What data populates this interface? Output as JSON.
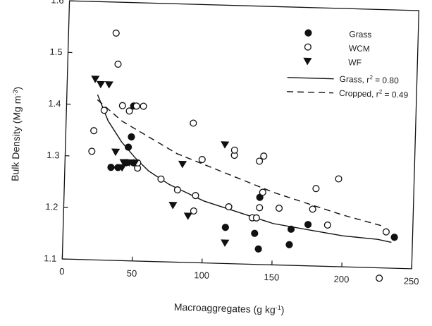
{
  "chart_data": {
    "type": "scatter",
    "xlabel": "Macroaggregates (g kg⁻¹)",
    "ylabel": "Bulk Density (Mg m⁻³)",
    "xlim": [
      0,
      250
    ],
    "ylim": [
      1.1,
      1.6
    ],
    "x_ticks": [
      "0",
      "50",
      "100",
      "150",
      "200",
      "250"
    ],
    "y_ticks": [
      "1.1",
      "1.2",
      "1.3",
      "1.4",
      "1.5",
      "1.6"
    ],
    "grid": false,
    "legend_position": "top-right",
    "series": [
      {
        "name": "Grass",
        "marker": "filled-circle",
        "points": [
          {
            "x": 33,
            "y": 1.28
          },
          {
            "x": 38,
            "y": 1.28
          },
          {
            "x": 44,
            "y": 1.29
          },
          {
            "x": 45,
            "y": 1.32
          },
          {
            "x": 47,
            "y": 1.34
          },
          {
            "x": 48,
            "y": 1.4
          },
          {
            "x": 49,
            "y": 1.29
          },
          {
            "x": 116,
            "y": 1.17
          },
          {
            "x": 137,
            "y": 1.16
          },
          {
            "x": 140,
            "y": 1.13
          },
          {
            "x": 140,
            "y": 1.23
          },
          {
            "x": 162,
            "y": 1.14
          },
          {
            "x": 163,
            "y": 1.17
          },
          {
            "x": 175,
            "y": 1.18
          },
          {
            "x": 237,
            "y": 1.16
          }
        ]
      },
      {
        "name": "WCM",
        "marker": "open-circle",
        "points": [
          {
            "x": 19,
            "y": 1.31
          },
          {
            "x": 20,
            "y": 1.35
          },
          {
            "x": 27,
            "y": 1.39
          },
          {
            "x": 34,
            "y": 1.54
          },
          {
            "x": 36,
            "y": 1.48
          },
          {
            "x": 40,
            "y": 1.4
          },
          {
            "x": 45,
            "y": 1.39
          },
          {
            "x": 50,
            "y": 1.4
          },
          {
            "x": 52,
            "y": 1.28
          },
          {
            "x": 52,
            "y": 1.29
          },
          {
            "x": 55,
            "y": 1.4
          },
          {
            "x": 69,
            "y": 1.26
          },
          {
            "x": 81,
            "y": 1.24
          },
          {
            "x": 91,
            "y": 1.37
          },
          {
            "x": 93,
            "y": 1.2
          },
          {
            "x": 94,
            "y": 1.23
          },
          {
            "x": 98,
            "y": 1.3
          },
          {
            "x": 118,
            "y": 1.21
          },
          {
            "x": 121,
            "y": 1.31
          },
          {
            "x": 121,
            "y": 1.32
          },
          {
            "x": 135,
            "y": 1.19
          },
          {
            "x": 138,
            "y": 1.19
          },
          {
            "x": 139,
            "y": 1.3
          },
          {
            "x": 140,
            "y": 1.21
          },
          {
            "x": 142,
            "y": 1.31
          },
          {
            "x": 142,
            "y": 1.24
          },
          {
            "x": 154,
            "y": 1.21
          },
          {
            "x": 178,
            "y": 1.21
          },
          {
            "x": 180,
            "y": 1.25
          },
          {
            "x": 189,
            "y": 1.18
          },
          {
            "x": 196,
            "y": 1.27
          },
          {
            "x": 227,
            "y": 1.08
          },
          {
            "x": 231,
            "y": 1.17
          }
        ]
      },
      {
        "name": "WF",
        "marker": "filled-triangle-down",
        "points": [
          {
            "x": 20,
            "y": 1.45
          },
          {
            "x": 24,
            "y": 1.44
          },
          {
            "x": 30,
            "y": 1.44
          },
          {
            "x": 36,
            "y": 1.31
          },
          {
            "x": 41,
            "y": 1.28
          },
          {
            "x": 42,
            "y": 1.29
          },
          {
            "x": 44,
            "y": 1.29
          },
          {
            "x": 46,
            "y": 1.29
          },
          {
            "x": 50,
            "y": 1.29
          },
          {
            "x": 78,
            "y": 1.21
          },
          {
            "x": 84,
            "y": 1.29
          },
          {
            "x": 89,
            "y": 1.19
          },
          {
            "x": 114,
            "y": 1.33
          },
          {
            "x": 116,
            "y": 1.14
          }
        ]
      }
    ],
    "fits": [
      {
        "name": "Grass",
        "style": "solid",
        "legend_label_prefix": "Grass, r",
        "legend_label_suffix": " = 0.80",
        "points": [
          {
            "x": 22,
            "y": 1.42
          },
          {
            "x": 30,
            "y": 1.37
          },
          {
            "x": 40,
            "y": 1.33
          },
          {
            "x": 50,
            "y": 1.3
          },
          {
            "x": 60,
            "y": 1.275
          },
          {
            "x": 75,
            "y": 1.25
          },
          {
            "x": 100,
            "y": 1.22
          },
          {
            "x": 125,
            "y": 1.2
          },
          {
            "x": 150,
            "y": 1.18
          },
          {
            "x": 175,
            "y": 1.17
          },
          {
            "x": 200,
            "y": 1.16
          },
          {
            "x": 225,
            "y": 1.155
          },
          {
            "x": 235,
            "y": 1.15
          }
        ]
      },
      {
        "name": "Cropped",
        "style": "dashed",
        "legend_label_prefix": "Cropped, r",
        "legend_label_suffix": " = 0.49",
        "points": [
          {
            "x": 22,
            "y": 1.41
          },
          {
            "x": 40,
            "y": 1.37
          },
          {
            "x": 60,
            "y": 1.34
          },
          {
            "x": 80,
            "y": 1.31
          },
          {
            "x": 100,
            "y": 1.29
          },
          {
            "x": 125,
            "y": 1.265
          },
          {
            "x": 150,
            "y": 1.24
          },
          {
            "x": 175,
            "y": 1.22
          },
          {
            "x": 200,
            "y": 1.2
          },
          {
            "x": 230,
            "y": 1.18
          }
        ]
      }
    ]
  }
}
